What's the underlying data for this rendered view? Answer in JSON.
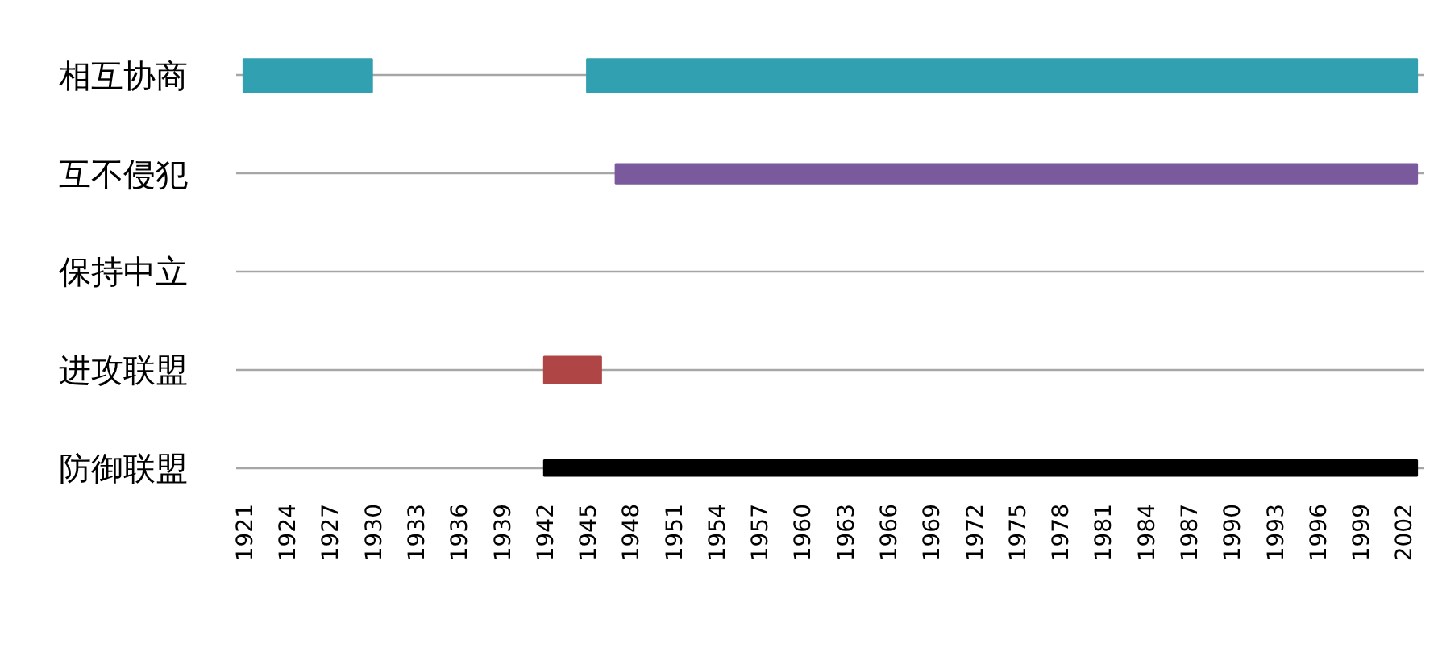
{
  "chart_data": {
    "type": "bar",
    "orientation": "horizontal",
    "categories": [
      "相互协商",
      "互不侵犯",
      "保持中立",
      "进攻联盟",
      "防御联盟"
    ],
    "series": [
      {
        "color": "#31a0b0",
        "base": [
          1921,
          null,
          null,
          null,
          null
        ],
        "values": [
          9,
          null,
          null,
          null,
          null
        ]
      },
      {
        "color": "#31a0b0",
        "base": [
          1945,
          null,
          null,
          null,
          null
        ],
        "values": [
          58,
          null,
          null,
          null,
          null
        ]
      },
      {
        "color": "#7a5a9c",
        "base": [
          null,
          1947,
          null,
          null,
          null
        ],
        "values": [
          null,
          56,
          null,
          null,
          null
        ]
      },
      {
        "color": "#b04545",
        "base": [
          null,
          null,
          null,
          1942,
          null
        ],
        "values": [
          null,
          null,
          null,
          4,
          null
        ]
      },
      {
        "color": "#000000",
        "base": [
          null,
          null,
          null,
          null,
          1942
        ],
        "values": [
          null,
          null,
          null,
          null,
          61
        ]
      }
    ],
    "xlim": [
      1920.5,
      2003.5
    ],
    "xticks": [
      1921,
      1924,
      1927,
      1930,
      1933,
      1936,
      1939,
      1942,
      1945,
      1948,
      1951,
      1954,
      1957,
      1960,
      1963,
      1966,
      1969,
      1972,
      1975,
      1978,
      1981,
      1984,
      1987,
      1990,
      1993,
      1996,
      1999,
      2002
    ],
    "grid": "y"
  }
}
